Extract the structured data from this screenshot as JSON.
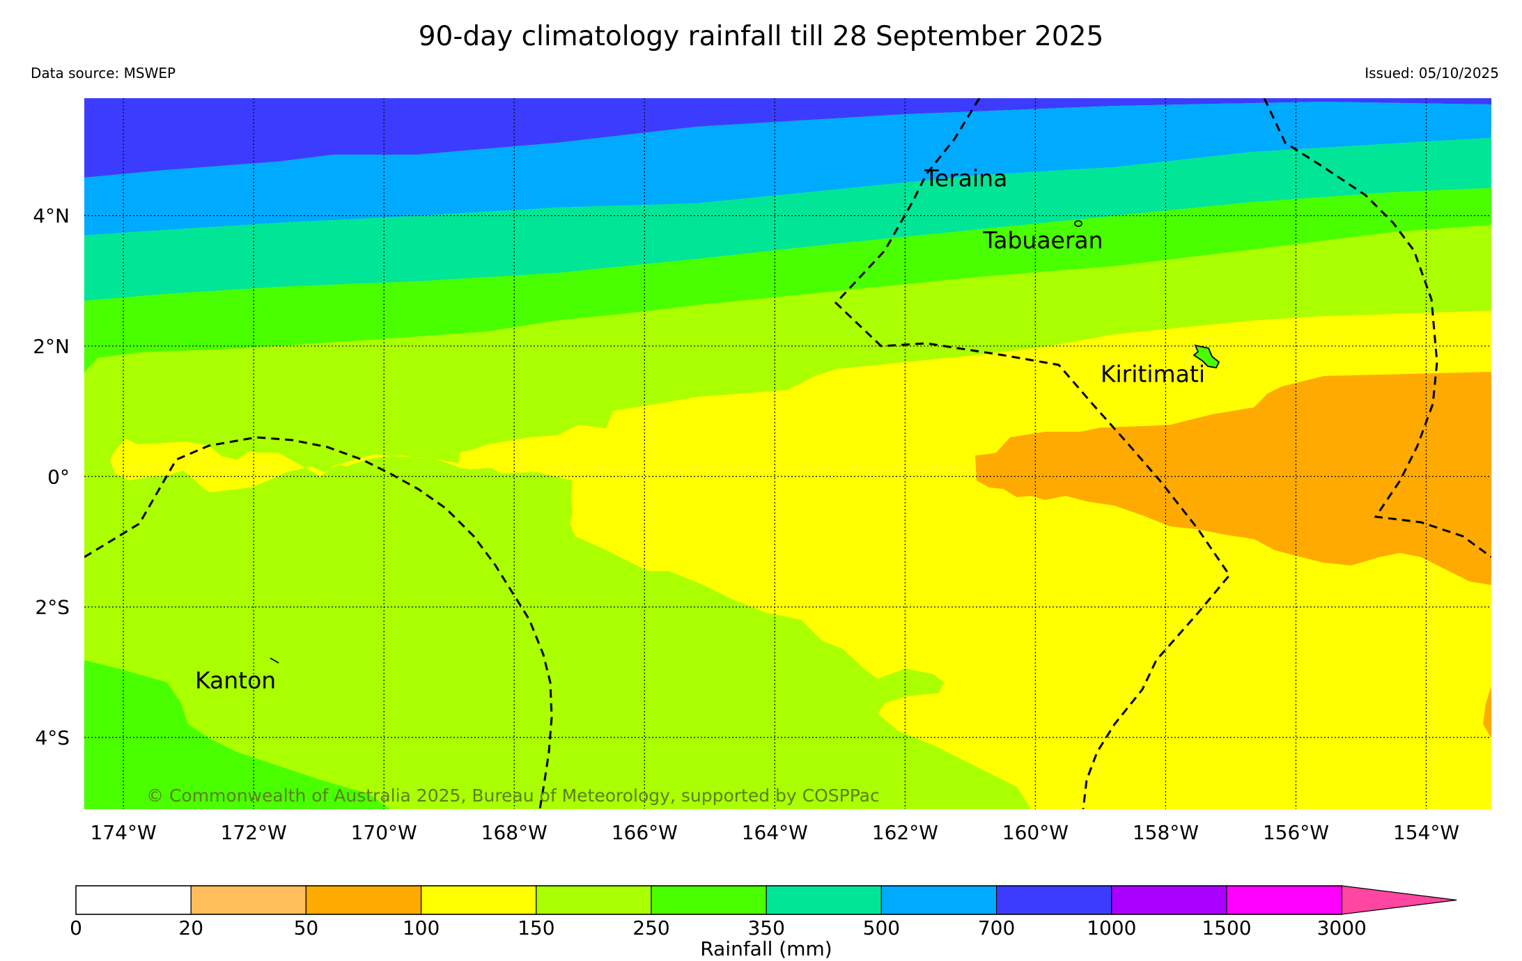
{
  "header": {
    "title": "90-day climatology rainfall till 28 September 2025",
    "source": "Data source: MSWEP",
    "issued": "Issued: 05/10/2025"
  },
  "map": {
    "lon_range": [
      -174.6,
      -153.0
    ],
    "lat_range": [
      -5.1,
      5.8
    ],
    "lon_ticks": [
      {
        "value": -174,
        "label": "174°W"
      },
      {
        "value": -172,
        "label": "172°W"
      },
      {
        "value": -170,
        "label": "170°W"
      },
      {
        "value": -168,
        "label": "168°W"
      },
      {
        "value": -166,
        "label": "166°W"
      },
      {
        "value": -164,
        "label": "164°W"
      },
      {
        "value": -162,
        "label": "162°W"
      },
      {
        "value": -160,
        "label": "160°W"
      },
      {
        "value": -158,
        "label": "158°W"
      },
      {
        "value": -156,
        "label": "156°W"
      },
      {
        "value": -154,
        "label": "154°W"
      }
    ],
    "lat_ticks": [
      {
        "value": 4,
        "label": "4°N"
      },
      {
        "value": 2,
        "label": "2°N"
      },
      {
        "value": 0,
        "label": "0°"
      },
      {
        "value": -2,
        "label": "2°S"
      },
      {
        "value": -4,
        "label": "4°S"
      }
    ],
    "places": [
      {
        "name": "Teraina",
        "lon": -161.7,
        "lat": 4.45
      },
      {
        "name": "Tabuaeran",
        "lon": -160.8,
        "lat": 3.5
      },
      {
        "name": "Kiritimati",
        "lon": -159.0,
        "lat": 1.45
      },
      {
        "name": "Kanton",
        "lon": -172.9,
        "lat": -3.25
      }
    ],
    "copyright": "© Commonwealth of Australia 2025, Bureau of Meteorology, supported by COSPPac"
  },
  "colorbar": {
    "title": "Rainfall (mm)",
    "boundaries": [
      "0",
      "20",
      "50",
      "100",
      "150",
      "250",
      "350",
      "500",
      "700",
      "1000",
      "1500",
      "3000"
    ],
    "colors": [
      "#ffffff",
      "#ffbe5a",
      "#ffaa00",
      "#ffff00",
      "#aaff00",
      "#4aff00",
      "#00e696",
      "#00aaff",
      "#3c3cff",
      "#aa00ff",
      "#ff00ff"
    ],
    "extend_color": "#ff46a0"
  }
}
